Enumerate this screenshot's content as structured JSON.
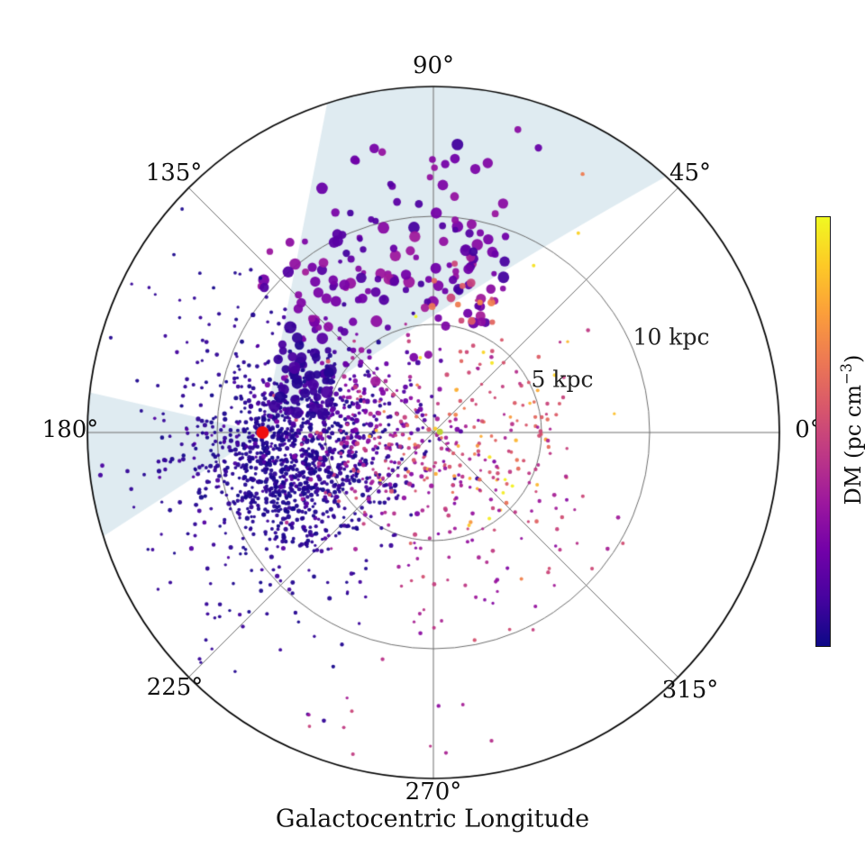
{
  "chart_data": {
    "type": "scatter",
    "projection": "polar",
    "xlabel": "Galactocentric Longitude",
    "theta_tick_labels": [
      "0°",
      "45°",
      "90°",
      "135°",
      "180°",
      "225°",
      "270°",
      "315°"
    ],
    "r_tick_labels": [
      "5 kpc",
      "10 kpc"
    ],
    "r_ticks_kpc": [
      5,
      10
    ],
    "r_max_kpc": 16,
    "grid_color": "#6e6e6e",
    "outer_circle_color": "#000000",
    "colormap": "plasma",
    "colormap_stops": [
      [
        0.0,
        "#0d0887"
      ],
      [
        0.111,
        "#46039f"
      ],
      [
        0.222,
        "#7201a8"
      ],
      [
        0.333,
        "#9c179e"
      ],
      [
        0.444,
        "#bd3786"
      ],
      [
        0.556,
        "#d8576b"
      ],
      [
        0.667,
        "#ed7953"
      ],
      [
        0.778,
        "#fb9f3a"
      ],
      [
        0.889,
        "#fdca26"
      ],
      [
        1.0,
        "#f0f921"
      ]
    ],
    "colorbar": {
      "label_pre": "DM (pc cm",
      "label_sup": "−3",
      "label_post": ")",
      "orientation": "vertical"
    },
    "dm_range": [
      0,
      1300
    ],
    "sun_marker": {
      "theta_deg": 180,
      "r_kpc": 7.9,
      "color": "#f01010",
      "radius_px": 7
    },
    "center_marker": {
      "theta_deg": 5,
      "r_kpc": 0.3,
      "color": "#bdd235",
      "radius_px": 3.5
    },
    "wedge_color": "#dfebf1",
    "survey_wedges": [
      {
        "name": "first-quadrant-survey-wedge",
        "apex": [
          292,
          480
        ],
        "edge_end": [
          739,
          196
        ],
        "quad_ctrl": [
          478,
          342
        ],
        "arc_from_deg": -47.7,
        "arc_to_deg": -107.9,
        "arc_end": [
          363,
          115
        ]
      },
      {
        "name": "anticenter-survey-wedge",
        "apex": [
          292,
          480
        ],
        "edge_end": [
          114.6,
          595.2
        ],
        "quad_ctrl": null,
        "arc_from_deg": 162.5,
        "arc_to_deg": 186.6,
        "arc_end": [
          99.6,
          435.6
        ]
      }
    ],
    "point_alpha": 0.95,
    "point_count_approx": 2050,
    "point_clusters": [
      {
        "name": "local-low-dm-core",
        "mode": "xy",
        "n": 800,
        "cx": -6.7,
        "cy": -1.1,
        "sx": 1.9,
        "sy": 2.0,
        "dm": [
          15,
          95
        ],
        "size": [
          1.7,
          2.7
        ]
      },
      {
        "name": "local-spread",
        "mode": "xy",
        "n": 330,
        "cx": -6.2,
        "cy": -0.4,
        "sx": 3.1,
        "sy": 2.7,
        "dm": [
          35,
          200
        ],
        "size": [
          1.6,
          2.6
        ]
      },
      {
        "name": "mid-violet",
        "mode": "xy",
        "n": 130,
        "cx": -4.0,
        "cy": 1.1,
        "sx": 1.9,
        "sy": 1.6,
        "dm": [
          140,
          380
        ],
        "size": [
          1.8,
          3.2
        ]
      },
      {
        "name": "inner-magenta",
        "mode": "xy",
        "n": 170,
        "cx": -2.3,
        "cy": -0.7,
        "sx": 2.0,
        "sy": 2.3,
        "dm": [
          330,
          720
        ],
        "size": [
          1.6,
          2.7
        ]
      },
      {
        "name": "far-side-hot",
        "mode": "xy",
        "n": 50,
        "cx": 1.6,
        "cy": -0.4,
        "sx": 2.3,
        "sy": 2.0,
        "dm": [
          650,
          1150
        ],
        "size": [
          1.6,
          2.4
        ]
      },
      {
        "name": "arm-large-dots",
        "mode": "polar",
        "n": 140,
        "th": [
          64,
          140
        ],
        "rm": 8.2,
        "rs": 1.8,
        "dm": [
          130,
          470
        ],
        "size": [
          3.0,
          6.5
        ]
      },
      {
        "name": "west-clump-large-dots",
        "mode": "polar",
        "n": 45,
        "th": [
          142,
          172
        ],
        "rm": 6.4,
        "rs": 0.9,
        "dm": [
          50,
          170
        ],
        "size": [
          3.5,
          7.0
        ]
      },
      {
        "name": "top-outer-medium-dots",
        "mode": "polar",
        "n": 16,
        "th": [
          68,
          120
        ],
        "rm": 13.0,
        "rs": 1.2,
        "dm": [
          170,
          430
        ],
        "size": [
          3.5,
          6.5
        ]
      },
      {
        "name": "inner-arm-hot",
        "mode": "polar",
        "n": 12,
        "th": [
          60,
          95
        ],
        "rm": 6.3,
        "rs": 0.8,
        "dm": [
          600,
          950
        ],
        "size": [
          3.0,
          5.0
        ]
      },
      {
        "name": "right-mid-pink",
        "mode": "polar",
        "n": 75,
        "th": [
          -48,
          72
        ],
        "rm": 4.6,
        "rs": 1.6,
        "dm": [
          430,
          840
        ],
        "size": [
          1.6,
          2.4
        ]
      },
      {
        "name": "bottom-left-dark",
        "mode": "polar",
        "n": 75,
        "th": [
          196,
          252
        ],
        "rm": 7.2,
        "rs": 2.7,
        "dm": [
          25,
          140
        ],
        "size": [
          1.6,
          2.4
        ]
      },
      {
        "name": "bottom-pink",
        "mode": "polar",
        "n": 95,
        "th": [
          252,
          345
        ],
        "rm": 6.2,
        "rs": 2.6,
        "dm": [
          340,
          700
        ],
        "size": [
          1.6,
          2.4
        ]
      },
      {
        "name": "outer-west-dark",
        "mode": "polar",
        "n": 70,
        "th": [
          138,
          236
        ],
        "rm": 12.2,
        "rs": 1.7,
        "dm": [
          20,
          120
        ],
        "size": [
          1.6,
          2.2
        ]
      },
      {
        "name": "bottom-outer-pink",
        "mode": "polar",
        "n": 10,
        "th": [
          245,
          290
        ],
        "rm": 13.5,
        "rs": 1.2,
        "dm": [
          350,
          650
        ],
        "size": [
          1.6,
          2.2
        ]
      },
      {
        "name": "yellow-outliers",
        "mode": "polar",
        "n": 15,
        "th": [
          -75,
          100
        ],
        "rm": 5.0,
        "rs": 2.2,
        "dm": [
          1020,
          1300
        ],
        "size": [
          1.6,
          2.2
        ]
      }
    ],
    "extra_points": [
      {
        "theta_deg": 60,
        "r_kpc": 13.8,
        "dm": 880,
        "size": 2.2
      },
      {
        "theta_deg": 54,
        "r_kpc": 11.4,
        "dm": 1180,
        "size": 2.0
      },
      {
        "theta_deg": 59,
        "r_kpc": 9.0,
        "dm": 1230,
        "size": 2.0
      },
      {
        "theta_deg": -69,
        "r_kpc": 4.6,
        "dm": 1150,
        "size": 2.0
      },
      {
        "theta_deg": -59,
        "r_kpc": 7.9,
        "dm": 900,
        "size": 2.0
      },
      {
        "theta_deg": 22,
        "r_kpc": 5.2,
        "dm": 1050,
        "size": 2.0
      }
    ]
  }
}
